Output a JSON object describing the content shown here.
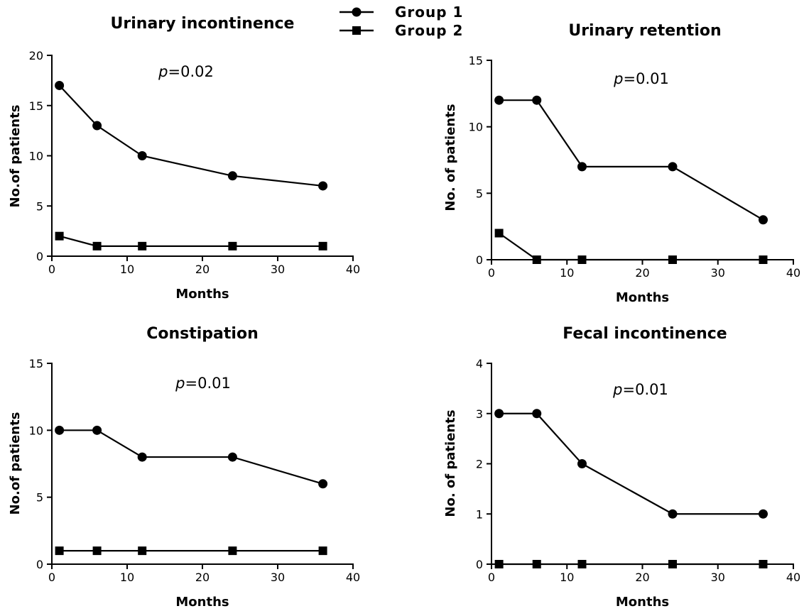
{
  "legend": {
    "items": [
      {
        "label": "Group 1",
        "marker": "circle"
      },
      {
        "label": "Group 2",
        "marker": "square"
      }
    ]
  },
  "chart_data": [
    {
      "type": "line",
      "title": "Urinary incontinence",
      "annotation_prefix": "p",
      "annotation_value": "=0.02",
      "xlabel": "Months",
      "ylabel": "No.of patients",
      "xlim": [
        0,
        40
      ],
      "ylim": [
        0,
        20
      ],
      "xticks": [
        0,
        10,
        20,
        30,
        40
      ],
      "yticks": [
        0,
        5,
        10,
        15,
        20
      ],
      "grid": false,
      "series": [
        {
          "name": "Group 1",
          "marker": "circle",
          "x": [
            1,
            6,
            12,
            24,
            36
          ],
          "y": [
            17,
            13,
            10,
            8,
            7
          ]
        },
        {
          "name": "Group 2",
          "marker": "square",
          "x": [
            1,
            6,
            12,
            24,
            36
          ],
          "y": [
            2,
            1,
            1,
            1,
            1
          ]
        }
      ]
    },
    {
      "type": "line",
      "title": "Urinary retention",
      "annotation_prefix": "p",
      "annotation_value": "=0.01",
      "xlabel": "Months",
      "ylabel": "No. of patients",
      "xlim": [
        0,
        40
      ],
      "ylim": [
        0,
        15
      ],
      "xticks": [
        0,
        10,
        20,
        30,
        40
      ],
      "yticks": [
        0,
        5,
        10,
        15
      ],
      "grid": false,
      "series": [
        {
          "name": "Group 1",
          "marker": "circle",
          "x": [
            1,
            6,
            12,
            24,
            36
          ],
          "y": [
            12,
            12,
            7,
            7,
            3
          ]
        },
        {
          "name": "Group 2",
          "marker": "square",
          "x": [
            1,
            6,
            12,
            24,
            36
          ],
          "y": [
            2,
            0,
            0,
            0,
            0
          ]
        }
      ]
    },
    {
      "type": "line",
      "title": "Constipation",
      "annotation_prefix": "p",
      "annotation_value": "=0.01",
      "xlabel": "Months",
      "ylabel": "No.of patients",
      "xlim": [
        0,
        40
      ],
      "ylim": [
        0,
        15
      ],
      "xticks": [
        0,
        10,
        20,
        30,
        40
      ],
      "yticks": [
        0,
        5,
        10,
        15
      ],
      "grid": false,
      "series": [
        {
          "name": "Group 1",
          "marker": "circle",
          "x": [
            1,
            6,
            12,
            24,
            36
          ],
          "y": [
            10,
            10,
            8,
            8,
            6
          ]
        },
        {
          "name": "Group 2",
          "marker": "square",
          "x": [
            1,
            6,
            12,
            24,
            36
          ],
          "y": [
            1,
            1,
            1,
            1,
            1
          ]
        }
      ]
    },
    {
      "type": "line",
      "title": "Fecal incontinence",
      "annotation_prefix": "p",
      "annotation_value": "=0.01",
      "xlabel": "Months",
      "ylabel": "No. of patients",
      "xlim": [
        0,
        40
      ],
      "ylim": [
        0,
        4
      ],
      "xticks": [
        0,
        10,
        20,
        30,
        40
      ],
      "yticks": [
        0,
        1,
        2,
        3,
        4
      ],
      "grid": false,
      "series": [
        {
          "name": "Group 1",
          "marker": "circle",
          "x": [
            1,
            6,
            12,
            24,
            36
          ],
          "y": [
            3,
            3,
            2,
            1,
            1
          ]
        },
        {
          "name": "Group 2",
          "marker": "square",
          "x": [
            1,
            6,
            12,
            24,
            36
          ],
          "y": [
            0,
            0,
            0,
            0,
            0
          ]
        }
      ]
    }
  ]
}
